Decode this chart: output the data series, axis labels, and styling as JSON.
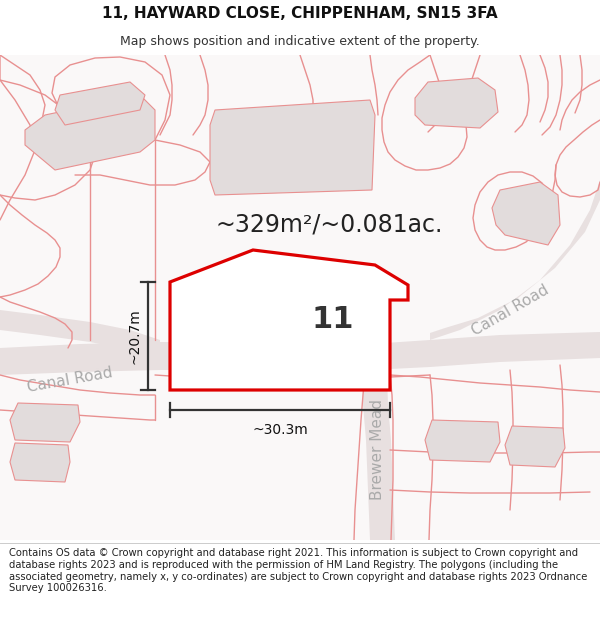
{
  "title": "11, HAYWARD CLOSE, CHIPPENHAM, SN15 3FA",
  "subtitle": "Map shows position and indicative extent of the property.",
  "footer": "Contains OS data © Crown copyright and database right 2021. This information is subject to Crown copyright and database rights 2023 and is reproduced with the permission of HM Land Registry. The polygons (including the associated geometry, namely x, y co-ordinates) are subject to Crown copyright and database rights 2023 Ordnance Survey 100026316.",
  "area_label": "~329m²/~0.081ac.",
  "number_label": "11",
  "width_label": "~30.3m",
  "height_label": "~20.7m",
  "road_label_canal_lower": "Canal Road",
  "road_label_canal_upper": "Canal Road",
  "road_label_brewer": "Brewer Mead",
  "map_bg": "#faf8f8",
  "road_fill": "#e8e0e0",
  "building_fill": "#e2dcdc",
  "pink": "#e89090",
  "plot_outline": "#dd0000",
  "plot_fill": "#ffffff",
  "dim_color": "#333333",
  "road_text_color": "#aaaaaa",
  "title_fontsize": 11,
  "subtitle_fontsize": 9,
  "footer_fontsize": 7.2,
  "area_fontsize": 17,
  "number_fontsize": 22,
  "road_fontsize": 11,
  "dim_fontsize": 10
}
